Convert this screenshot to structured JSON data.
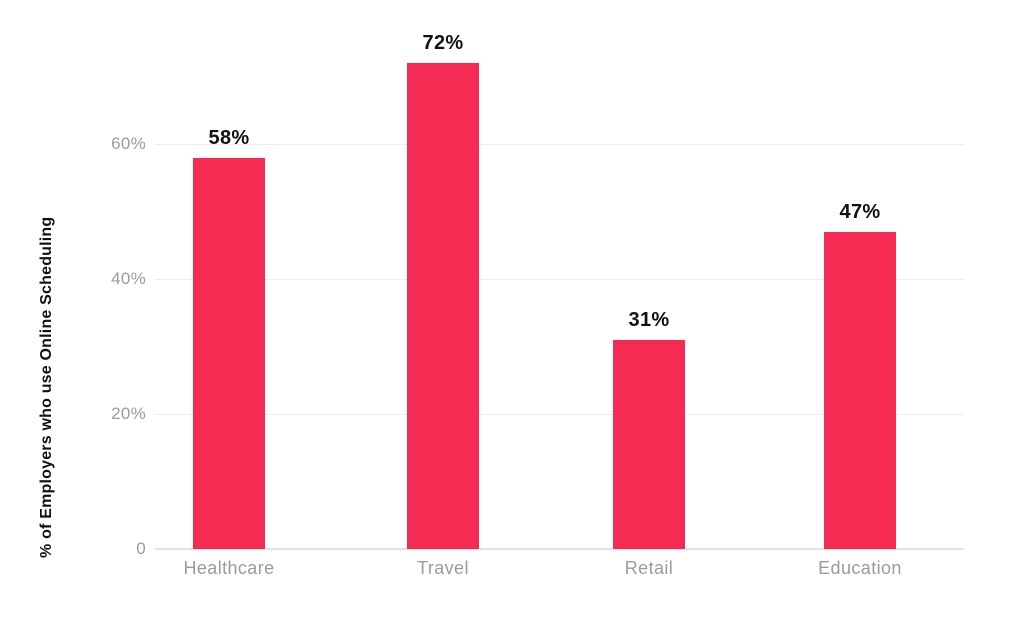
{
  "chart_data": {
    "type": "bar",
    "title": "",
    "xlabel": "",
    "ylabel": "% of Employers who use Online Scheduling",
    "categories": [
      "Healthcare",
      "Travel",
      "Retail",
      "Education"
    ],
    "values": [
      58,
      72,
      31,
      47
    ],
    "value_labels": [
      "58%",
      "72%",
      "31%",
      "47%"
    ],
    "ylim": [
      0,
      80
    ],
    "yticks": [
      {
        "value": 0,
        "label": "0"
      },
      {
        "value": 20,
        "label": "20%"
      },
      {
        "value": 40,
        "label": "40%"
      },
      {
        "value": 60,
        "label": "60%"
      }
    ],
    "grid": true,
    "legend": false,
    "colors": {
      "bar": "#F62B54",
      "value_label": "#111111",
      "axis_text": "#9B9B9B",
      "gridline": "#EDEDED",
      "baseline": "#E2E2E2",
      "background": "#FFFFFF"
    }
  }
}
